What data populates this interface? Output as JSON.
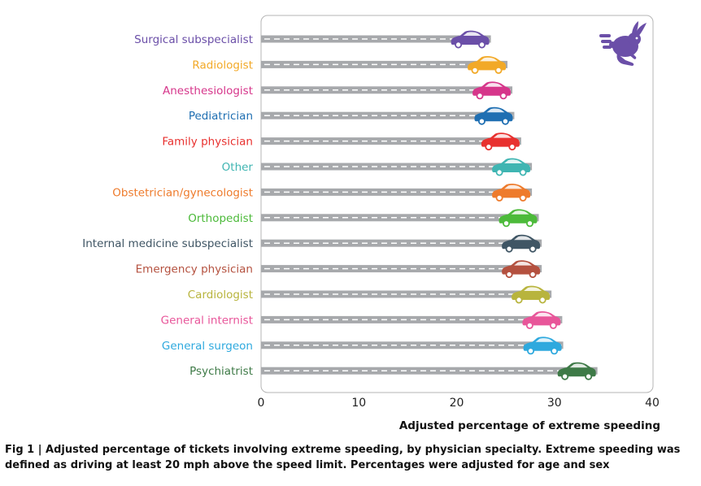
{
  "chart_data": {
    "type": "bar",
    "title": "",
    "xlabel": "Adjusted percentage of extreme speeding",
    "ylabel": "",
    "xlim": [
      0,
      40
    ],
    "xticks": [
      0,
      10,
      20,
      30,
      40
    ],
    "grid": false,
    "categories": [
      "Surgical subspecialist",
      "Radiologist",
      "Anesthesiologist",
      "Pediatrician",
      "Family physician",
      "Other",
      "Obstetrician/gynecologist",
      "Orthopedist",
      "Internal medicine subspecialist",
      "Emergency physician",
      "Cardiologist",
      "General internist",
      "General surgeon",
      "Psychiatrist"
    ],
    "values": [
      23.5,
      25.2,
      25.7,
      25.9,
      26.6,
      27.7,
      27.7,
      28.4,
      28.7,
      28.7,
      29.7,
      30.8,
      30.9,
      34.4
    ],
    "colors": [
      "#6b4fa8",
      "#f2a927",
      "#d6368b",
      "#1f6fb2",
      "#e8312f",
      "#3fb5b2",
      "#ee7b2c",
      "#4cba3a",
      "#3f5564",
      "#b4513f",
      "#b8b43d",
      "#e8569a",
      "#2ea9de",
      "#3e7a47"
    ]
  },
  "caption": {
    "line1": "Fig 1 | Adjusted percentage of tickets involving extreme speeding, by physician specialty. Extreme speeding was",
    "line2": "defined as driving at least 20 mph above the speed limit. Percentages were adjusted for age and sex"
  },
  "decorations": {
    "corner_icon": "running-rabbit-icon",
    "marker_icon": "sports-car-icon",
    "icon_color": "#6b4fa8",
    "road_color": "#a7a9ac"
  }
}
